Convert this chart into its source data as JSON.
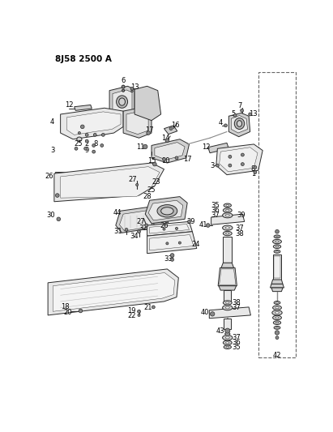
{
  "title": "8J58 2500 A",
  "bg_color": "#ffffff",
  "line_color": "#2a2a2a",
  "fill_light": "#e8e8e8",
  "fill_mid": "#d0d0d0",
  "fill_dark": "#b8b8b8",
  "fig_size": [
    4.11,
    5.33
  ],
  "dpi": 100,
  "title_fontsize": 7.5,
  "label_fontsize": 6.0
}
